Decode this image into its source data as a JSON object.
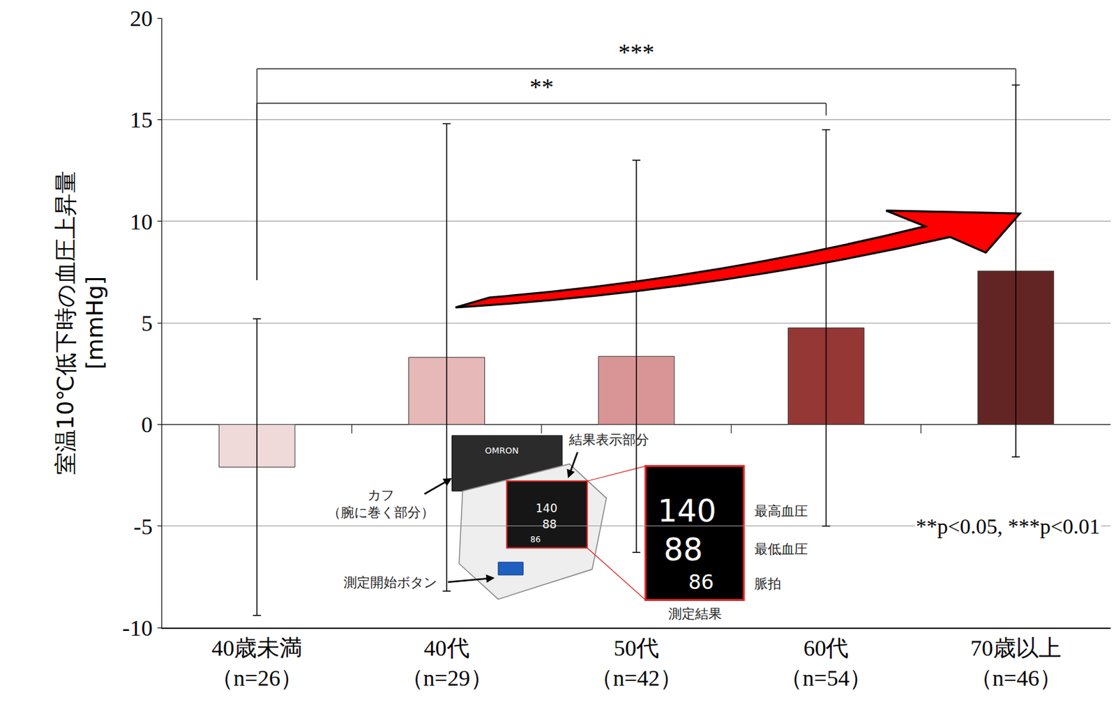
{
  "chart_data": {
    "type": "bar",
    "y_label": "室温10℃低下時の血圧上昇量\n[mmHg]",
    "categories": [
      "40歳未満\n（n=26）",
      "40代\n（n=29）",
      "50代\n（n=42）",
      "60代\n（n=54）",
      "70歳以上\n（n=46）"
    ],
    "values": [
      -2.1,
      3.3,
      3.35,
      4.75,
      7.55
    ],
    "error": [
      7.3,
      11.5,
      9.65,
      9.75,
      9.15
    ],
    "colors": [
      "#f0d9d9",
      "#e6b8b8",
      "#d99595",
      "#953735",
      "#632523"
    ],
    "ylim": [
      -10,
      20
    ],
    "yticks": [
      -10,
      -5,
      0,
      5,
      10,
      15,
      20
    ],
    "grid": true,
    "significance": [
      {
        "from": 0,
        "to": 4,
        "label": "***",
        "y": 17.5,
        "bracket_ends": [
          7.1,
          16.6
        ]
      },
      {
        "from": 0,
        "to": 3,
        "label": "**",
        "y": 15.8,
        "bracket_ends": [
          7.1,
          15.2
        ]
      }
    ],
    "note": "**p<0.05, ***p<0.01",
    "inset": {
      "cuff": "カフ\n（腕に巻く部分）",
      "display": "結果表示部分",
      "button": "測定開始ボタン",
      "brand": "OMRON",
      "systolic": "最高血圧",
      "diastolic": "最低血圧",
      "pulse": "脈拍",
      "result": "測定結果",
      "readings": [
        "140",
        "88",
        "86"
      ]
    }
  }
}
